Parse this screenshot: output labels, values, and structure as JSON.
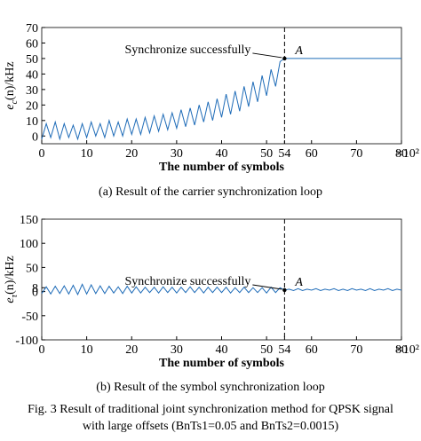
{
  "chart_data": [
    {
      "type": "line",
      "color": "#1f6cb8",
      "xlim": [
        0,
        80
      ],
      "xticks": [
        0,
        10,
        20,
        30,
        40,
        50,
        54,
        60,
        70,
        80
      ],
      "ylim": [
        -5,
        70
      ],
      "yticks": [
        0,
        10,
        20,
        30,
        40,
        50,
        60,
        70
      ],
      "xlabel": "The number of symbols",
      "x_scale": "×10²",
      "ylabel": {
        "main": "e",
        "sub": "c",
        "rest": "(n)/kHz"
      },
      "annotation": "Synchronize successfully",
      "point_label": "A",
      "point": {
        "x": 54,
        "y": 50
      },
      "caption": "(a) Result of the carrier synchronization loop",
      "x": [
        0,
        1,
        2,
        3,
        4,
        5,
        6,
        7,
        8,
        9,
        10,
        11,
        12,
        13,
        14,
        15,
        16,
        17,
        18,
        19,
        20,
        21,
        22,
        23,
        24,
        25,
        26,
        27,
        28,
        29,
        30,
        31,
        32,
        33,
        34,
        35,
        36,
        37,
        38,
        39,
        40,
        41,
        42,
        43,
        44,
        45,
        46,
        47,
        48,
        49,
        50,
        51,
        52,
        53,
        54,
        80
      ],
      "values": [
        -2,
        8,
        -1,
        9,
        -2,
        8,
        -1,
        7,
        -2,
        8,
        -1,
        9,
        0,
        8,
        -1,
        10,
        0,
        9,
        0,
        11,
        1,
        11,
        1,
        12,
        2,
        13,
        3,
        14,
        4,
        15,
        5,
        17,
        6,
        18,
        7,
        20,
        9,
        22,
        10,
        24,
        12,
        27,
        14,
        29,
        16,
        32,
        19,
        35,
        22,
        39,
        26,
        43,
        32,
        48,
        50,
        50
      ]
    },
    {
      "type": "line",
      "color": "#1f6cb8",
      "xlim": [
        0,
        80
      ],
      "xticks": [
        0,
        10,
        20,
        30,
        40,
        50,
        54,
        60,
        70,
        80
      ],
      "ylim": [
        -100,
        150
      ],
      "yticks": [
        -100,
        -50,
        0,
        8,
        50,
        100,
        150
      ],
      "xlabel": "The number of symbols",
      "x_scale": "×10²",
      "ylabel": {
        "main": "e",
        "sub": "τ",
        "rest": "(n)/kHz"
      },
      "annotation": "Synchronize successfully",
      "point_label": "A",
      "point": {
        "x": 54,
        "y": 3
      },
      "caption": "(b) Result of the symbol synchronization loop",
      "x": [
        0,
        1,
        2,
        3,
        4,
        5,
        6,
        7,
        8,
        9,
        10,
        11,
        12,
        13,
        14,
        15,
        16,
        17,
        18,
        19,
        20,
        21,
        22,
        23,
        24,
        25,
        26,
        27,
        28,
        29,
        30,
        31,
        32,
        33,
        34,
        35,
        36,
        37,
        38,
        39,
        40,
        41,
        42,
        43,
        44,
        45,
        46,
        47,
        48,
        49,
        50,
        51,
        52,
        53,
        54,
        55,
        56,
        57,
        58,
        59,
        60,
        61,
        62,
        63,
        64,
        65,
        66,
        67,
        68,
        69,
        70,
        71,
        72,
        73,
        74,
        75,
        76,
        77,
        78,
        79,
        80
      ],
      "values": [
        -4,
        10,
        -5,
        11,
        -4,
        12,
        -5,
        13,
        -6,
        15,
        -5,
        14,
        -4,
        12,
        -4,
        11,
        -3,
        10,
        -4,
        11,
        -3,
        10,
        -3,
        9,
        -2,
        9,
        -3,
        10,
        -2,
        9,
        -3,
        9,
        -2,
        10,
        -2,
        9,
        -3,
        9,
        -2,
        9,
        -2,
        9,
        -3,
        8,
        -2,
        9,
        -2,
        8,
        -2,
        8,
        -3,
        9,
        -2,
        8,
        3,
        5,
        2,
        6,
        2,
        5,
        3,
        6,
        2,
        5,
        3,
        6,
        2,
        5,
        2,
        6,
        3,
        5,
        2,
        6,
        2,
        5,
        3,
        6,
        2,
        5,
        3
      ]
    }
  ],
  "figure_caption": [
    "Fig. 3 Result of traditional joint synchronization method for QPSK signal",
    "with large offsets (BnTs1=0.05 and BnTs2=0.0015)"
  ]
}
